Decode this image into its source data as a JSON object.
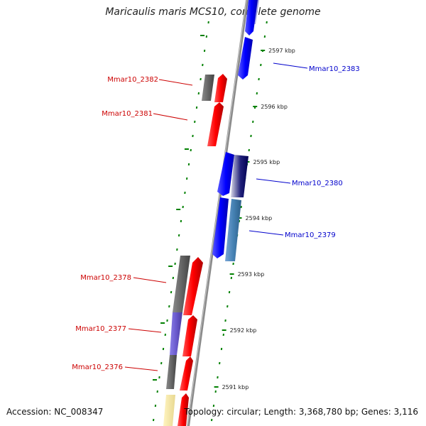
{
  "title": "Maricaulis maris MCS10, complete genome",
  "footer": {
    "accession": "Accession: NC_008347",
    "topology": "Topology: circular; Length: 3,368,780 bp; Genes: 3,116"
  },
  "colors": {
    "forward_label": "#cc0000",
    "reverse_label": "#0000cc",
    "backbone": "#888888",
    "ticks": "#008000"
  },
  "ticks": [
    {
      "label": "2597 kbp"
    },
    {
      "label": "2596 kbp"
    },
    {
      "label": "2595 kbp"
    },
    {
      "label": "2594 kbp"
    },
    {
      "label": "2593 kbp"
    },
    {
      "label": "2592 kbp"
    },
    {
      "label": "2591 kbp"
    }
  ],
  "genes_forward": [
    {
      "name": "Mmar10_2382"
    },
    {
      "name": "Mmar10_2381"
    },
    {
      "name": "Mmar10_2378"
    },
    {
      "name": "Mmar10_2377"
    },
    {
      "name": "Mmar10_2376"
    }
  ],
  "genes_reverse": [
    {
      "name": "Mmar10_2383"
    },
    {
      "name": "Mmar10_2380"
    },
    {
      "name": "Mmar10_2379"
    }
  ]
}
